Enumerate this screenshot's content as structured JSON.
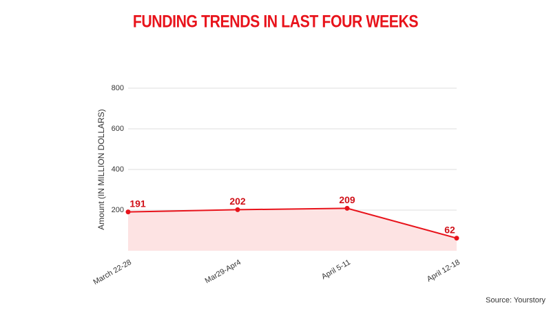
{
  "chart_data": {
    "type": "area-line",
    "title": "FUNDING TRENDS IN LAST FOUR WEEKS",
    "y_label": "Amount (IN MILLION DOLLARS)",
    "categories": [
      "March 22-28",
      "Mar29-Apr4",
      "April 5-11",
      "April 12-18"
    ],
    "values": [
      191,
      202,
      209,
      62
    ],
    "color": "#e8131b",
    "fill": "#fde3e3",
    "ylim": [
      0,
      800
    ],
    "yticks": [
      200,
      400,
      600,
      800
    ],
    "grid": true
  },
  "source": "Source: Yourstory"
}
